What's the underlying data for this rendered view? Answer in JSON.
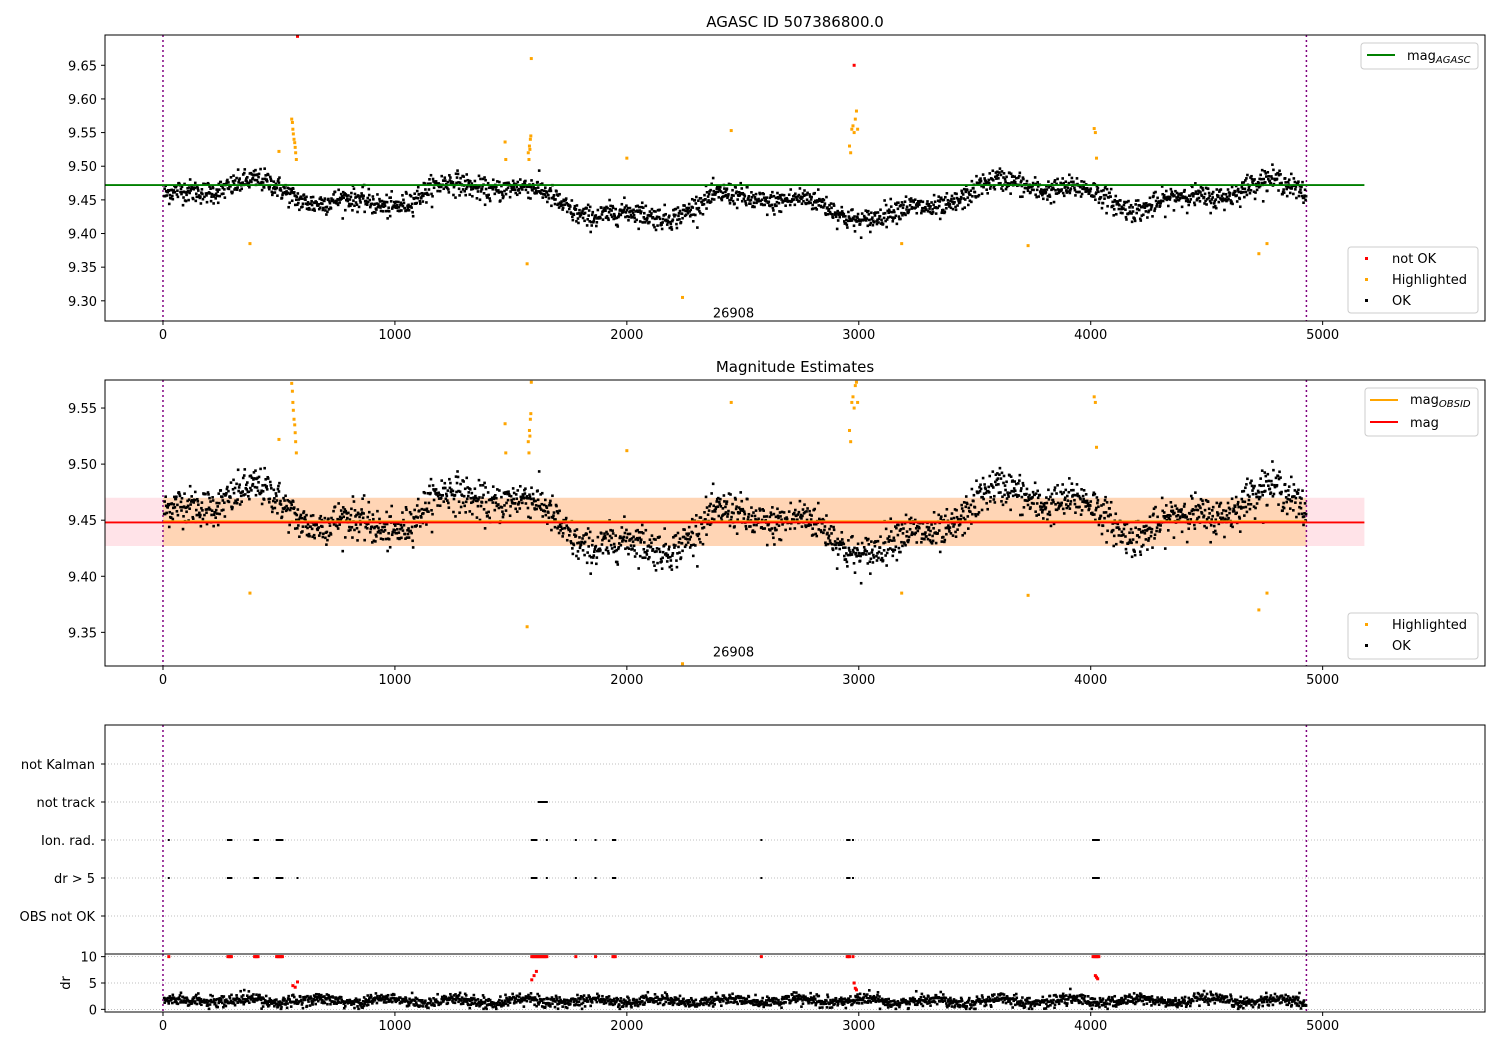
{
  "chart_data": [
    {
      "type": "scatter",
      "title": "AGASC ID 507386800.0",
      "xlabel": "",
      "ylabel": "",
      "xlim": [
        -250,
        5700
      ],
      "ylim": [
        9.27,
        9.695
      ],
      "xticks": [
        0,
        1000,
        2000,
        3000,
        4000,
        5000
      ],
      "yticks": [
        9.3,
        9.35,
        9.4,
        9.45,
        9.5,
        9.55,
        9.6,
        9.65
      ],
      "ytick_labels": [
        "9.30",
        "9.35",
        "9.40",
        "9.45",
        "9.50",
        "9.55",
        "9.60",
        "9.65"
      ],
      "line": {
        "name": "mag",
        "subscript": "AGASC",
        "y": 9.472,
        "x": [
          -250,
          5180
        ],
        "color": "#008000"
      },
      "obs_boundaries": [
        0,
        4930
      ],
      "obsid_label": {
        "text": "26908",
        "x": 2460,
        "y": 9.283
      },
      "legend_points": [
        {
          "name": "not OK",
          "color": "#ff0000"
        },
        {
          "name": "Highlighted",
          "color": "#ffa500"
        },
        {
          "name": "OK",
          "color": "#000000"
        }
      ],
      "series": [
        {
          "name": "not OK",
          "color": "#ff0000",
          "points": [
            [
              580,
              9.693
            ],
            [
              2980,
              9.65
            ]
          ]
        },
        {
          "name": "Highlighted",
          "color": "#ffa500",
          "points": [
            [
              375,
              9.385
            ],
            [
              500,
              9.522
            ],
            [
              555,
              9.57
            ],
            [
              558,
              9.565
            ],
            [
              560,
              9.555
            ],
            [
              562,
              9.548
            ],
            [
              565,
              9.54
            ],
            [
              568,
              9.535
            ],
            [
              570,
              9.528
            ],
            [
              572,
              9.52
            ],
            [
              575,
              9.51
            ],
            [
              1475,
              9.536
            ],
            [
              1478,
              9.51
            ],
            [
              1570,
              9.355
            ],
            [
              1575,
              9.52
            ],
            [
              1578,
              9.51
            ],
            [
              1580,
              9.53
            ],
            [
              1582,
              9.525
            ],
            [
              1584,
              9.54
            ],
            [
              1586,
              9.545
            ],
            [
              1588,
              9.66
            ],
            [
              2000,
              9.512
            ],
            [
              2240,
              9.305
            ],
            [
              2450,
              9.553
            ],
            [
              2960,
              9.53
            ],
            [
              2965,
              9.52
            ],
            [
              2970,
              9.555
            ],
            [
              2975,
              9.56
            ],
            [
              2980,
              9.55
            ],
            [
              2985,
              9.57
            ],
            [
              2990,
              9.582
            ],
            [
              2995,
              9.555
            ],
            [
              3185,
              9.385
            ],
            [
              3730,
              9.382
            ],
            [
              4015,
              9.556
            ],
            [
              4020,
              9.55
            ],
            [
              4025,
              9.512
            ],
            [
              4725,
              9.37
            ],
            [
              4760,
              9.385
            ]
          ]
        }
      ],
      "ok_stats": {
        "mean": 9.449,
        "sd": 0.012
      }
    },
    {
      "type": "scatter",
      "title": "Magnitude Estimates",
      "xlabel": "",
      "ylabel": "",
      "xlim": [
        -250,
        5700
      ],
      "ylim": [
        9.32,
        9.575
      ],
      "xticks": [
        0,
        1000,
        2000,
        3000,
        4000,
        5000
      ],
      "yticks": [
        9.35,
        9.4,
        9.45,
        9.5,
        9.55
      ],
      "ytick_labels": [
        "9.35",
        "9.40",
        "9.45",
        "9.50",
        "9.55"
      ],
      "band": {
        "ymin": 9.427,
        "ymax": 9.47,
        "x": [
          -250,
          5180
        ]
      },
      "lines": [
        {
          "name": "mag",
          "subscript": "OBSID",
          "color": "#ffa500",
          "y": 9.449
        },
        {
          "name": "mag",
          "subscript": "",
          "color": "#ff0000",
          "y": 9.448
        }
      ],
      "obs_boundaries": [
        0,
        4930
      ],
      "obsid_label": {
        "text": "26908",
        "x": 2460,
        "y": 9.325
      },
      "legend_points": [
        {
          "name": "Highlighted",
          "color": "#ffa500"
        },
        {
          "name": "OK",
          "color": "#000000"
        }
      ],
      "series": [
        {
          "name": "Highlighted",
          "color": "#ffa500",
          "points": [
            [
              375,
              9.385
            ],
            [
              500,
              9.522
            ],
            [
              555,
              9.572
            ],
            [
              558,
              9.565
            ],
            [
              560,
              9.555
            ],
            [
              562,
              9.548
            ],
            [
              565,
              9.54
            ],
            [
              568,
              9.535
            ],
            [
              570,
              9.528
            ],
            [
              572,
              9.52
            ],
            [
              575,
              9.51
            ],
            [
              1475,
              9.536
            ],
            [
              1478,
              9.51
            ],
            [
              1570,
              9.355
            ],
            [
              1575,
              9.52
            ],
            [
              1578,
              9.51
            ],
            [
              1580,
              9.53
            ],
            [
              1582,
              9.525
            ],
            [
              1584,
              9.54
            ],
            [
              1586,
              9.545
            ],
            [
              1588,
              9.573
            ],
            [
              2000,
              9.512
            ],
            [
              2240,
              9.322
            ],
            [
              2450,
              9.555
            ],
            [
              2960,
              9.53
            ],
            [
              2965,
              9.52
            ],
            [
              2970,
              9.555
            ],
            [
              2975,
              9.56
            ],
            [
              2980,
              9.55
            ],
            [
              2985,
              9.57
            ],
            [
              2990,
              9.573
            ],
            [
              2995,
              9.555
            ],
            [
              3185,
              9.385
            ],
            [
              3730,
              9.383
            ],
            [
              4015,
              9.56
            ],
            [
              4020,
              9.555
            ],
            [
              4025,
              9.515
            ],
            [
              4725,
              9.37
            ],
            [
              4760,
              9.385
            ]
          ]
        }
      ],
      "ok_stats": {
        "mean": 9.449,
        "sd": 0.012
      }
    },
    {
      "type": "scatter",
      "title": "",
      "xlim": [
        -250,
        5700
      ],
      "categories": [
        "not Kalman",
        "not track",
        "Ion. rad.",
        "dr > 5",
        "OBS not OK"
      ],
      "obs_boundaries": [
        0,
        4930
      ],
      "flags": [
        {
          "category": "not track",
          "x": [
            1620,
            1625,
            1630,
            1635,
            1640,
            1645,
            1650,
            1655
          ]
        },
        {
          "category": "Ion. rad.",
          "x": [
            25,
            280,
            285,
            290,
            295,
            395,
            400,
            405,
            410,
            490,
            495,
            500,
            505,
            510,
            515,
            1590,
            1595,
            1600,
            1605,
            1610,
            1655,
            1780,
            1865,
            1940,
            1945,
            1950,
            2580,
            2950,
            2955,
            2960,
            2975,
            4010,
            4015,
            4020,
            4025,
            4030,
            4035
          ]
        },
        {
          "category": "dr > 5",
          "x": [
            25,
            280,
            285,
            290,
            295,
            395,
            400,
            405,
            410,
            490,
            495,
            500,
            505,
            510,
            515,
            580,
            1590,
            1595,
            1600,
            1605,
            1610,
            1655,
            1780,
            1865,
            1940,
            1945,
            1950,
            2580,
            2950,
            2955,
            2960,
            2975,
            4010,
            4015,
            4020,
            4025,
            4030,
            4035
          ]
        }
      ]
    },
    {
      "type": "scatter",
      "title": "",
      "ylabel": "dr",
      "xlim": [
        -250,
        5700
      ],
      "ylim": [
        -0.5,
        10.5
      ],
      "xticks": [
        0,
        1000,
        2000,
        3000,
        4000,
        5000
      ],
      "yticks": [
        0,
        5,
        10
      ],
      "ytick_labels": [
        "0",
        "5",
        "10"
      ],
      "obs_boundaries": [
        0,
        4930
      ],
      "threshold": 10,
      "series": [
        {
          "name": "dr > 5",
          "color": "#ff0000",
          "points": [
            [
              25,
              10
            ],
            [
              280,
              10
            ],
            [
              285,
              10
            ],
            [
              290,
              10
            ],
            [
              295,
              10
            ],
            [
              395,
              10
            ],
            [
              400,
              10
            ],
            [
              405,
              10
            ],
            [
              410,
              10
            ],
            [
              490,
              10
            ],
            [
              495,
              10
            ],
            [
              500,
              10
            ],
            [
              505,
              10
            ],
            [
              510,
              10
            ],
            [
              515,
              10
            ],
            [
              560,
              4.5
            ],
            [
              570,
              4.2
            ],
            [
              580,
              5.2
            ],
            [
              1590,
              10
            ],
            [
              1595,
              10
            ],
            [
              1600,
              10
            ],
            [
              1605,
              10
            ],
            [
              1610,
              10
            ],
            [
              1615,
              10
            ],
            [
              1620,
              10
            ],
            [
              1625,
              10
            ],
            [
              1630,
              10
            ],
            [
              1635,
              10
            ],
            [
              1640,
              10
            ],
            [
              1645,
              10
            ],
            [
              1650,
              10
            ],
            [
              1655,
              10
            ],
            [
              1610,
              7.2
            ],
            [
              1600,
              6.4
            ],
            [
              1590,
              5.6
            ],
            [
              1780,
              10
            ],
            [
              1865,
              10
            ],
            [
              1940,
              10
            ],
            [
              1945,
              10
            ],
            [
              1950,
              10
            ],
            [
              2580,
              10
            ],
            [
              2950,
              10
            ],
            [
              2955,
              10
            ],
            [
              2960,
              10
            ],
            [
              2975,
              10
            ],
            [
              2980,
              5.0
            ],
            [
              2985,
              4.0
            ],
            [
              2990,
              3.7
            ],
            [
              4010,
              10
            ],
            [
              4015,
              10
            ],
            [
              4020,
              10
            ],
            [
              4025,
              10
            ],
            [
              4030,
              10
            ],
            [
              4035,
              10
            ],
            [
              4020,
              6.4
            ],
            [
              4030,
              5.8
            ],
            [
              4025,
              6.1
            ]
          ]
        }
      ],
      "ok_stats": {
        "mean": 1.6,
        "sd": 0.55
      }
    }
  ]
}
